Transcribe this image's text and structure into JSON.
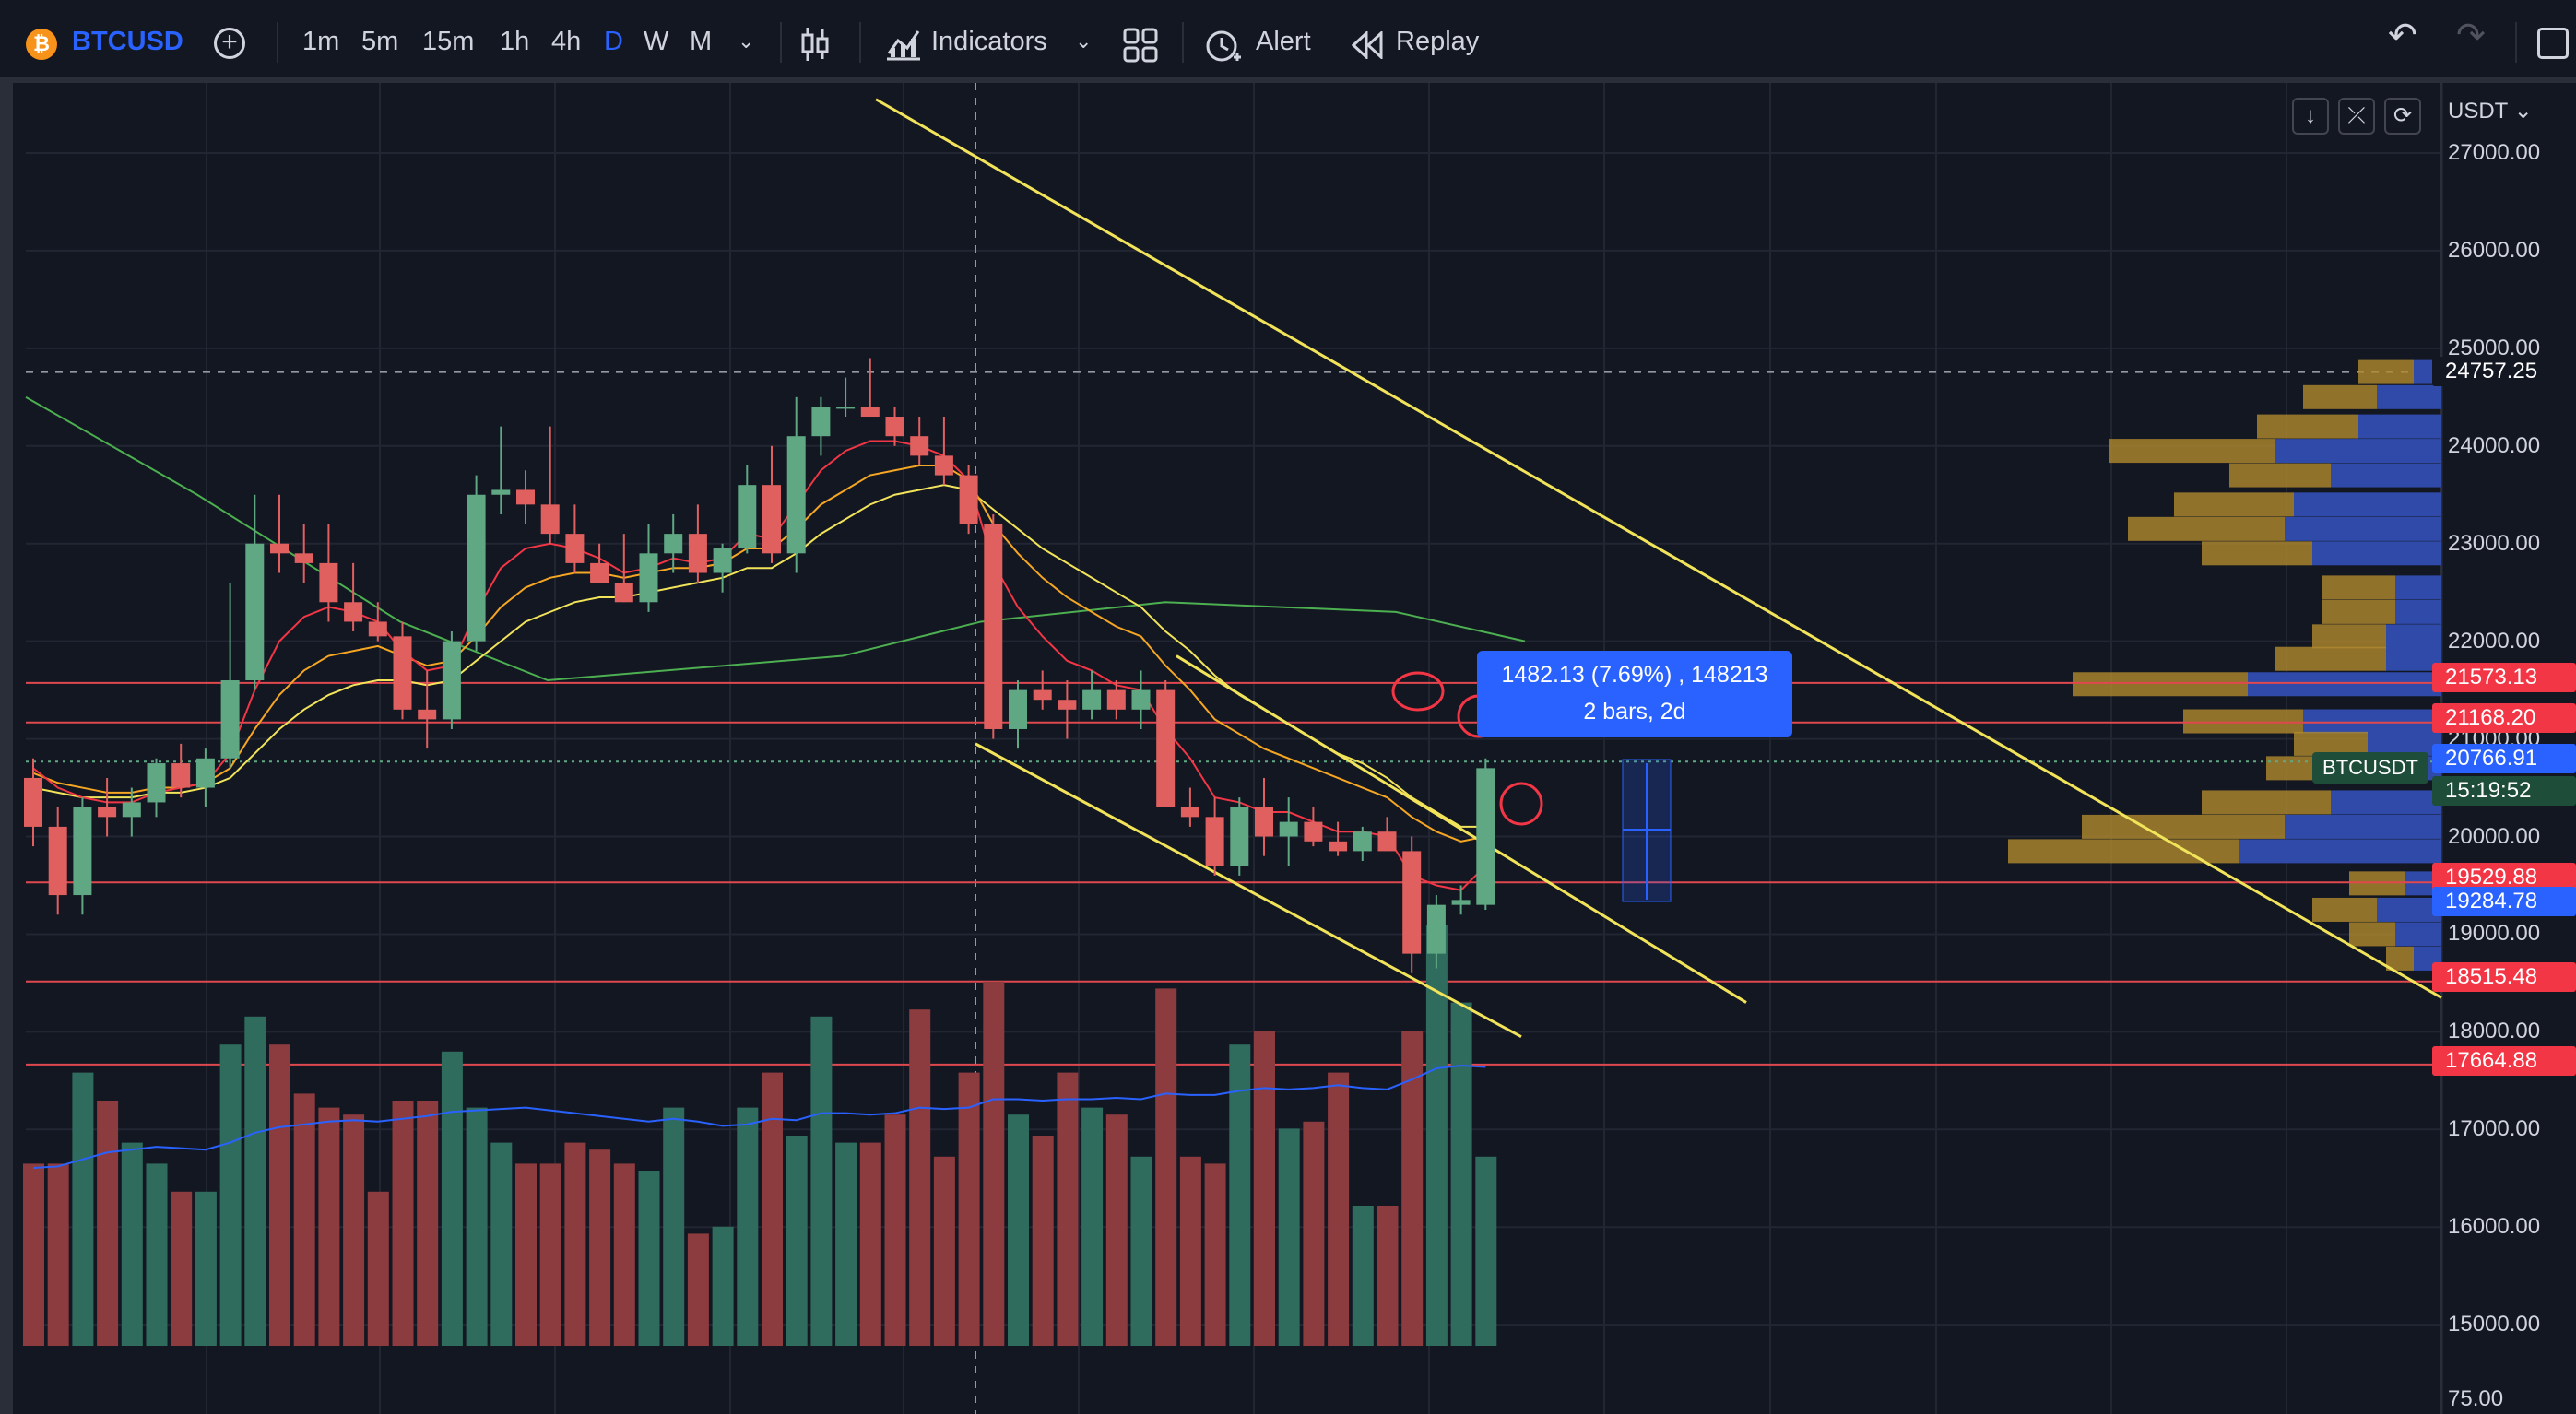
{
  "toolbar": {
    "symbol": "BTCUSD",
    "symbol_icon": "bitcoin-icon",
    "timeframes": [
      "1m",
      "5m",
      "15m",
      "1h",
      "4h",
      "D",
      "W",
      "M"
    ],
    "active_timeframe": "D",
    "indicators_label": "Indicators",
    "alert_label": "Alert",
    "replay_label": "Replay"
  },
  "axis": {
    "currency": "USDT",
    "ticks": [
      "27000.00",
      "26000.00",
      "25000.00",
      "24000.00",
      "23000.00",
      "22000.00",
      "21000.00",
      "20000.00",
      "19000.00",
      "18000.00",
      "17000.00",
      "16000.00",
      "15000.00",
      "75.00"
    ]
  },
  "price_labels": [
    {
      "value": "24757.25",
      "color": "#131722"
    },
    {
      "value": "21573.13",
      "color": "#f23645"
    },
    {
      "value": "21168.20",
      "color": "#f23645"
    },
    {
      "value": "20766.91",
      "color": "#2962ff"
    },
    {
      "value": "15:19:52",
      "color": "#1e4d3a"
    },
    {
      "value": "19529.88",
      "color": "#f23645"
    },
    {
      "value": "19284.78",
      "color": "#2962ff"
    },
    {
      "value": "18515.48",
      "color": "#f23645"
    },
    {
      "value": "17664.88",
      "color": "#f23645"
    }
  ],
  "measure": {
    "line1": "1482.13 (7.69%) , 148213",
    "line2": "2 bars, 2d"
  },
  "btc_tag": "BTCUSDT",
  "colors": {
    "up": "#5fa883",
    "down": "#e06060",
    "accent": "#2962ff",
    "trendline": "#f2e45a",
    "hline": "#e0484f",
    "ema_fast": "#f23645",
    "ema_mid": "#f5a623",
    "ema_slow": "#f2e45a",
    "ma_long": "#4caf50"
  },
  "chart_data": {
    "type": "candlestick",
    "candles": [
      [
        20600,
        20800,
        19900,
        20100
      ],
      [
        20100,
        20300,
        19200,
        19400
      ],
      [
        19400,
        20400,
        19200,
        20300
      ],
      [
        20300,
        20600,
        20000,
        20200
      ],
      [
        20200,
        20500,
        20000,
        20350
      ],
      [
        20350,
        20800,
        20200,
        20750
      ],
      [
        20750,
        20950,
        20400,
        20500
      ],
      [
        20500,
        20900,
        20300,
        20800
      ],
      [
        20800,
        22600,
        20700,
        21600
      ],
      [
        21600,
        23500,
        21500,
        23000
      ],
      [
        23000,
        23500,
        22700,
        22900
      ],
      [
        22900,
        23200,
        22600,
        22800
      ],
      [
        22800,
        23200,
        22200,
        22400
      ],
      [
        22400,
        22800,
        22100,
        22200
      ],
      [
        22200,
        22400,
        22000,
        22050
      ],
      [
        22050,
        22200,
        21200,
        21300
      ],
      [
        21300,
        21700,
        20900,
        21200
      ],
      [
        21200,
        22100,
        21100,
        22000
      ],
      [
        22000,
        23700,
        21900,
        23500
      ],
      [
        23500,
        24200,
        23300,
        23550
      ],
      [
        23550,
        23750,
        23200,
        23400
      ],
      [
        23400,
        24200,
        23000,
        23100
      ],
      [
        23100,
        23400,
        22700,
        22800
      ],
      [
        22800,
        23000,
        22600,
        22600
      ],
      [
        22600,
        23100,
        22400,
        22400
      ],
      [
        22400,
        23200,
        22300,
        22900
      ],
      [
        22900,
        23300,
        22700,
        23100
      ],
      [
        23100,
        23400,
        22600,
        22700
      ],
      [
        22700,
        23000,
        22500,
        22950
      ],
      [
        22950,
        23800,
        22900,
        23600
      ],
      [
        23600,
        24000,
        22800,
        22900
      ],
      [
        22900,
        24500,
        22700,
        24100
      ],
      [
        24100,
        24500,
        23900,
        24400
      ],
      [
        24400,
        24700,
        24300,
        24400
      ],
      [
        24400,
        24900,
        24300,
        24300
      ],
      [
        24300,
        24400,
        24000,
        24100
      ],
      [
        24100,
        24300,
        23800,
        23900
      ],
      [
        23900,
        24300,
        23600,
        23700
      ],
      [
        23700,
        23800,
        23100,
        23200
      ],
      [
        23200,
        23300,
        21000,
        21100
      ],
      [
        21100,
        21600,
        20900,
        21500
      ],
      [
        21500,
        21700,
        21300,
        21400
      ],
      [
        21400,
        21600,
        21000,
        21300
      ],
      [
        21300,
        21700,
        21200,
        21500
      ],
      [
        21500,
        21600,
        21200,
        21300
      ],
      [
        21300,
        21700,
        21100,
        21500
      ],
      [
        21500,
        21600,
        20300,
        20300
      ],
      [
        20300,
        20500,
        20100,
        20200
      ],
      [
        20200,
        20400,
        19600,
        19700
      ],
      [
        19700,
        20400,
        19600,
        20300
      ],
      [
        20300,
        20600,
        19800,
        20000
      ],
      [
        20000,
        20400,
        19700,
        20150
      ],
      [
        20150,
        20300,
        19900,
        19950
      ],
      [
        19950,
        20150,
        19800,
        19850
      ],
      [
        19850,
        20100,
        19750,
        20050
      ],
      [
        20050,
        20200,
        19900,
        19850
      ],
      [
        19850,
        20000,
        18600,
        18800
      ],
      [
        18800,
        19400,
        18650,
        19300
      ],
      [
        19300,
        19500,
        19200,
        19350
      ],
      [
        19300,
        20800,
        19250,
        20700
      ]
    ],
    "volumes": [
      1300,
      1300,
      1950,
      1750,
      1450,
      1300,
      1100,
      1100,
      2150,
      2350,
      2150,
      1800,
      1700,
      1650,
      1100,
      1750,
      1750,
      2100,
      1700,
      1450,
      1300,
      1300,
      1450,
      1400,
      1300,
      1250,
      1700,
      800,
      850,
      1700,
      1950,
      1500,
      2350,
      1450,
      1450,
      1650,
      2400,
      1350,
      1950,
      2600,
      1650,
      1500,
      1950,
      1700,
      1650,
      1350,
      2550,
      1350,
      1300,
      2150,
      2250,
      1550,
      1600,
      1950,
      1000,
      1000,
      2250,
      3000,
      2450,
      1350
    ],
    "ema_fast": [
      20700,
      20500,
      20400,
      20350,
      20350,
      20450,
      20500,
      20550,
      20850,
      21500,
      22000,
      22250,
      22350,
      22300,
      22200,
      21900,
      21700,
      21750,
      22300,
      22750,
      22950,
      23000,
      22950,
      22850,
      22700,
      22750,
      22850,
      22800,
      22850,
      23100,
      23050,
      23400,
      23750,
      23950,
      24050,
      24050,
      24000,
      23900,
      23650,
      22800,
      22350,
      22050,
      21800,
      21700,
      21550,
      21500,
      21100,
      20800,
      20400,
      20350,
      20250,
      20250,
      20150,
      20050,
      20050,
      20000,
      19600,
      19500,
      19450,
      19700
    ],
    "ema_mid": [
      20650,
      20550,
      20500,
      20450,
      20450,
      20500,
      20500,
      20550,
      20700,
      21100,
      21450,
      21700,
      21850,
      21900,
      21950,
      21850,
      21750,
      21800,
      22050,
      22350,
      22550,
      22650,
      22700,
      22700,
      22650,
      22700,
      22750,
      22750,
      22800,
      22950,
      22950,
      23150,
      23400,
      23550,
      23700,
      23750,
      23800,
      23800,
      23650,
      23200,
      22900,
      22650,
      22450,
      22300,
      22150,
      22050,
      21750,
      21500,
      21200,
      21050,
      20900,
      20800,
      20700,
      20600,
      20500,
      20400,
      20200,
      20050,
      19950,
      20000
    ],
    "ema_slow": [
      20500,
      20450,
      20400,
      20400,
      20400,
      20450,
      20450,
      20500,
      20600,
      20850,
      21100,
      21300,
      21450,
      21550,
      21600,
      21600,
      21550,
      21600,
      21800,
      22000,
      22200,
      22300,
      22400,
      22450,
      22450,
      22500,
      22550,
      22600,
      22650,
      22750,
      22750,
      22900,
      23100,
      23250,
      23400,
      23500,
      23550,
      23600,
      23550,
      23350,
      23150,
      22950,
      22800,
      22650,
      22500,
      22350,
      22100,
      21900,
      21650,
      21450,
      21300,
      21150,
      21000,
      20850,
      20750,
      20600,
      20400,
      20250,
      20100,
      20100
    ],
    "vol_ma": [
      1270,
      1280,
      1330,
      1380,
      1400,
      1420,
      1410,
      1400,
      1450,
      1520,
      1560,
      1580,
      1600,
      1610,
      1600,
      1620,
      1640,
      1670,
      1680,
      1690,
      1700,
      1680,
      1660,
      1640,
      1620,
      1600,
      1620,
      1600,
      1570,
      1580,
      1620,
      1610,
      1660,
      1660,
      1650,
      1660,
      1700,
      1690,
      1700,
      1760,
      1760,
      1750,
      1760,
      1760,
      1770,
      1760,
      1800,
      1790,
      1790,
      1820,
      1840,
      1830,
      1840,
      1860,
      1840,
      1830,
      1900,
      1980,
      2000,
      1990
    ],
    "ylim": [
      14900,
      27300
    ],
    "trendlines": [
      {
        "from": [
          "bar38",
          27550
        ],
        "to": [
          "axis",
          18350
        ]
      },
      {
        "from": [
          "bar48",
          21850
        ],
        "to": [
          "bar72",
          18300
        ]
      },
      {
        "from": [
          "bar40",
          20950
        ],
        "to": [
          "bar62",
          17950
        ]
      }
    ],
    "horizontal_levels": [
      21573.13,
      21168.2,
      19529.88,
      18515.48,
      17664.88
    ],
    "dashed_level": 24757.25
  }
}
